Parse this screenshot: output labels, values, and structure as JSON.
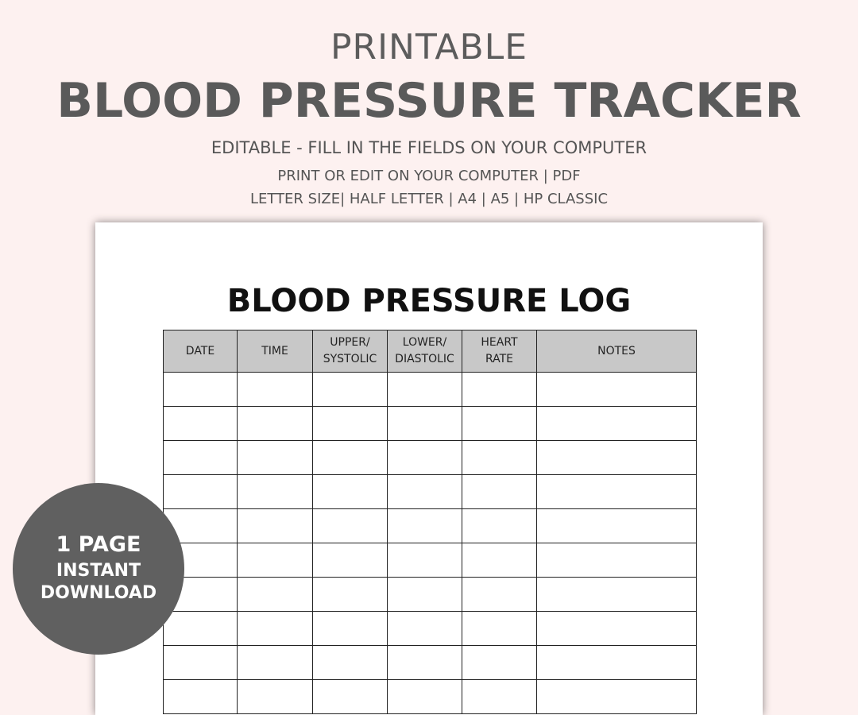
{
  "header": {
    "line1": "PRINTABLE",
    "title": "BLOOD PRESSURE TRACKER",
    "subtitle": "EDITABLE - FILL IN THE FIELDS ON YOUR COMPUTER",
    "info1": "PRINT OR EDIT ON YOUR COMPUTER | PDF",
    "info2": "LETTER SIZE| HALF LETTER | A4 | A5 | HP CLASSIC"
  },
  "log": {
    "title": "BLOOD PRESSURE LOG",
    "columns": [
      [
        "DATE"
      ],
      [
        "TIME"
      ],
      [
        "UPPER/",
        "SYSTOLIC"
      ],
      [
        "LOWER/",
        "DIASTOLIC"
      ],
      [
        "HEART",
        "RATE"
      ],
      [
        "NOTES"
      ]
    ],
    "row_count": 10
  },
  "badge": {
    "line1": "1 PAGE",
    "line2": "INSTANT",
    "line3": "DOWNLOAD"
  },
  "colors": {
    "background": "#fdf1f0",
    "header_fill": "#c8c8c8",
    "badge": "#606060"
  }
}
